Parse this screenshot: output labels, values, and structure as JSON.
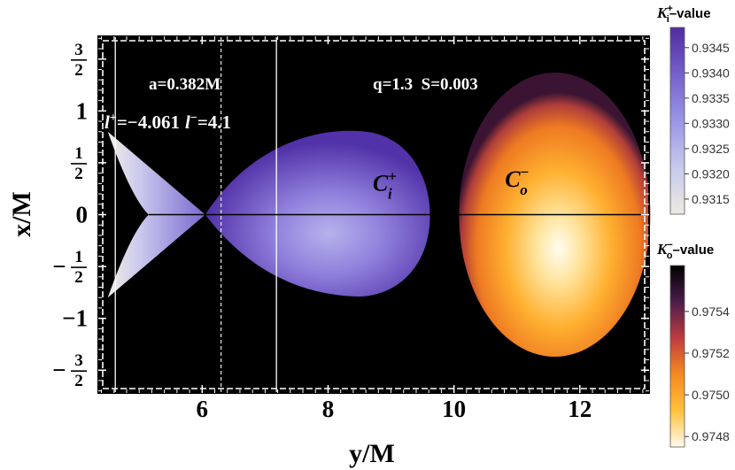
{
  "chart_data": {
    "type": "heatmap",
    "xlabel": "y/M",
    "ylabel": "x/M",
    "xlim": [
      4.35,
      13.1
    ],
    "ylim": [
      -1.72,
      1.72
    ],
    "x_ticks": [
      {
        "value": 6,
        "label": "6"
      },
      {
        "value": 8,
        "label": "8"
      },
      {
        "value": 10,
        "label": "10"
      },
      {
        "value": 12,
        "label": "12"
      }
    ],
    "y_ticks": [
      {
        "value": 1.5,
        "sign": "",
        "num": "3",
        "den": "2"
      },
      {
        "value": 1,
        "label": "1"
      },
      {
        "value": 0.5,
        "sign": "",
        "num": "1",
        "den": "2"
      },
      {
        "value": 0,
        "label": "0"
      },
      {
        "value": -0.5,
        "sign": "−",
        "num": "1",
        "den": "2"
      },
      {
        "value": -1,
        "label": "−1"
      },
      {
        "value": -1.5,
        "sign": "−",
        "num": "3",
        "den": "2"
      }
    ],
    "annotations": {
      "spin": "a=0.382M",
      "params": "q=1.3  S=0.003",
      "l_plus_prefix": "l",
      "l_plus_sup": "+",
      "l_plus_value": "=−4.061",
      "l_minus_prefix": "l",
      "l_minus_sup": "−",
      "l_minus_value": "=4.1"
    },
    "vertical_lines": [
      {
        "x": 4.62,
        "style": "solid"
      },
      {
        "x": 6.3,
        "style": "dashed"
      },
      {
        "x": 7.18,
        "style": "solid"
      }
    ],
    "regions": [
      {
        "name": "C",
        "sub": "i",
        "sup": "+",
        "label_x": 8.9,
        "label_y": 0.23,
        "colorbar": 0
      },
      {
        "name": "C",
        "sub": "o",
        "sup": "−",
        "label_x": 11.0,
        "label_y": 0.27,
        "colorbar": 1
      }
    ],
    "colorbars": [
      {
        "title_base": "K",
        "title_sub": "i",
        "title_sup": "+",
        "title_suffix": "–value",
        "range": [
          0.9312,
          0.9349
        ],
        "ticks": [
          "0.9345",
          "0.9340",
          "0.9335",
          "0.9330",
          "0.9325",
          "0.9320",
          "0.9315"
        ],
        "tick_values": [
          0.9345,
          0.934,
          0.9335,
          0.933,
          0.9325,
          0.932,
          0.9315
        ],
        "colors": [
          "#eeeae0",
          "#c7caec",
          "#9a96e4",
          "#7660cc",
          "#4f2c9e"
        ]
      },
      {
        "title_base": "K",
        "title_sub": "o",
        "title_sup": "−",
        "title_suffix": "–value",
        "range": [
          0.97475,
          0.97562
        ],
        "ticks": [
          "0.9754",
          "0.9752",
          "0.9750",
          "0.9748"
        ],
        "tick_values": [
          0.9754,
          0.9752,
          0.975,
          0.9748
        ],
        "colors": [
          "#fffaf0",
          "#ffc13a",
          "#f58a1f",
          "#bf3b3f",
          "#4b1d4a",
          "#000000"
        ]
      }
    ]
  }
}
